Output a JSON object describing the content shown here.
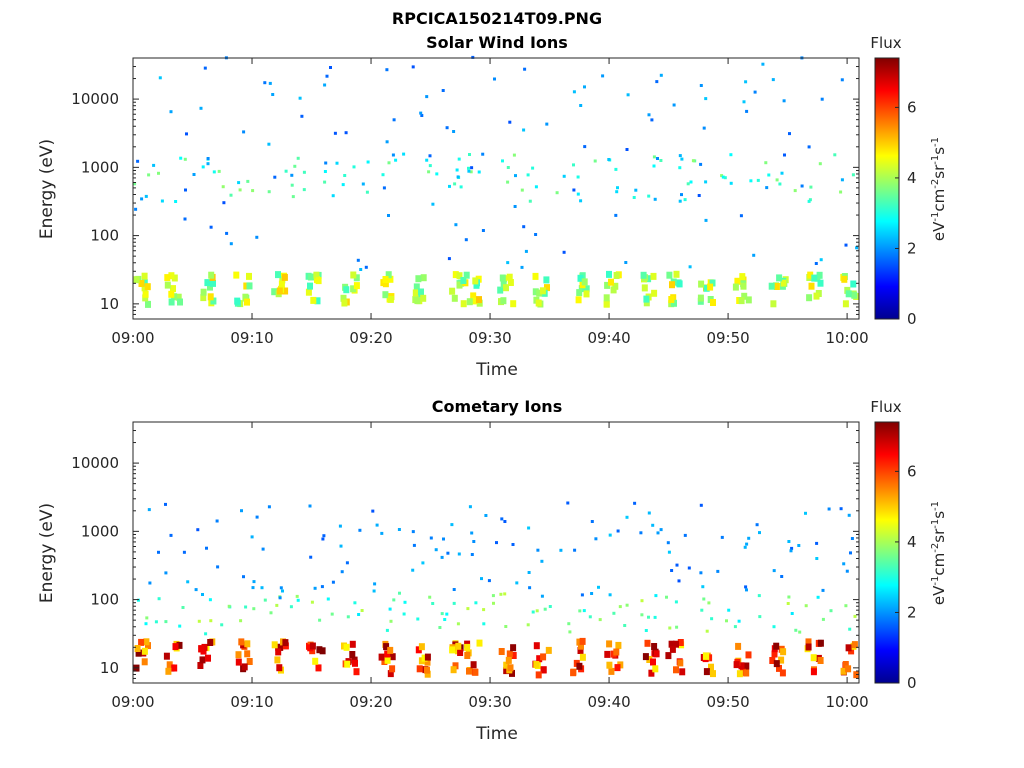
{
  "figure_title": "RPCICA150214T09.PNG",
  "chart_data": [
    {
      "type": "heatmap",
      "title": "Solar Wind Ions",
      "xlabel": "Time",
      "ylabel": "Energy (eV)",
      "x_ticks": [
        "09:00",
        "09:10",
        "09:20",
        "09:30",
        "09:40",
        "09:50",
        "10:00"
      ],
      "x_range": [
        "09:00",
        "10:01"
      ],
      "y_scale": "log",
      "y_ticks": [
        "10",
        "100",
        "1000",
        "10000"
      ],
      "y_range": [
        6,
        40000
      ],
      "colorbar": {
        "title": "Flux",
        "label": "eV-1cm-2sr-1s-1",
        "ticks": [
          "0",
          "2",
          "4",
          "6"
        ],
        "range": [
          0,
          7.4
        ]
      },
      "bands": [
        {
          "y_from": 10,
          "y_to": 28,
          "level": 4.2
        },
        {
          "y_from": 300,
          "y_to": 1500,
          "level": 3.2
        },
        {
          "y_from": 30,
          "y_to": 40000,
          "level": 2.0
        }
      ],
      "sweep_minutes": [
        0.5,
        3.1,
        6.0,
        9.0,
        12.1,
        15.1,
        18.0,
        21.0,
        24.0,
        27.1,
        28.3,
        31.2,
        34.1,
        37.3,
        40.1,
        43.2,
        45.3,
        48.0,
        51.0,
        54.0,
        57.0,
        60.0
      ]
    },
    {
      "type": "heatmap",
      "title": "Cometary Ions",
      "xlabel": "Time",
      "ylabel": "Energy (eV)",
      "x_ticks": [
        "09:00",
        "09:10",
        "09:20",
        "09:30",
        "09:40",
        "09:50",
        "10:00"
      ],
      "x_range": [
        "09:00",
        "10:01"
      ],
      "y_scale": "log",
      "y_ticks": [
        "10",
        "100",
        "1000",
        "10000"
      ],
      "y_range": [
        6,
        40000
      ],
      "colorbar": {
        "title": "Flux",
        "label": "eV-1cm-2sr-1s-1",
        "ticks": [
          "0",
          "2",
          "4",
          "6"
        ],
        "range": [
          0,
          7.4
        ]
      },
      "bands": [
        {
          "y_from": 8,
          "y_to": 25,
          "level": 6.2
        },
        {
          "y_from": 30,
          "y_to": 120,
          "level": 3.5
        },
        {
          "y_from": 100,
          "y_to": 2500,
          "level": 2.0
        }
      ],
      "sweep_minutes": [
        0.5,
        3.1,
        6.0,
        9.0,
        12.1,
        15.1,
        18.0,
        21.0,
        24.0,
        27.1,
        28.3,
        31.2,
        34.1,
        37.3,
        40.1,
        43.2,
        45.3,
        48.0,
        51.0,
        54.0,
        57.0,
        60.0
      ]
    }
  ]
}
